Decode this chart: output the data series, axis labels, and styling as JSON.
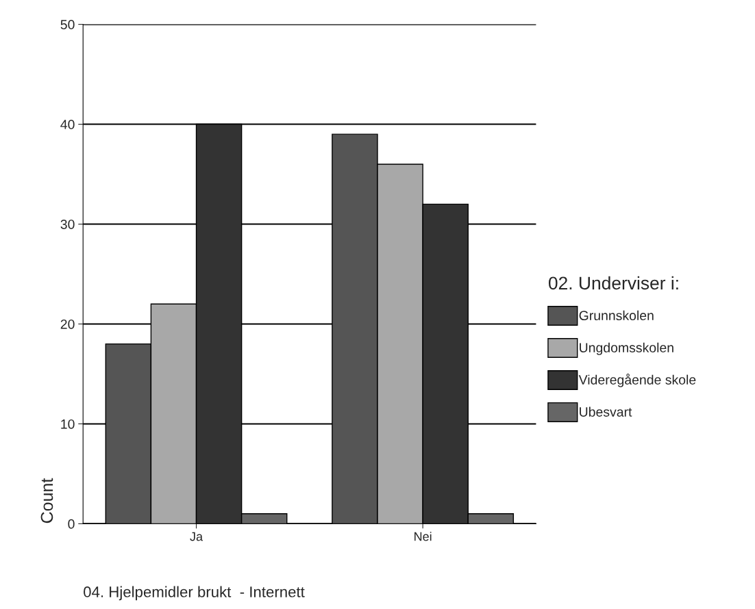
{
  "chart_data": {
    "type": "bar",
    "xlabel": "04. Hjelpemidler brukt  - Internett",
    "ylabel": "Count",
    "legend_title": "02. Underviser i:",
    "categories": [
      "Ja",
      "Nei"
    ],
    "series": [
      {
        "name": "Grunnskolen",
        "color": "#555555",
        "values": [
          18,
          39
        ]
      },
      {
        "name": "Ungdomsskolen",
        "color": "#a8a8a8",
        "values": [
          22,
          36
        ]
      },
      {
        "name": "Videregående skole",
        "color": "#333333",
        "values": [
          40,
          32
        ]
      },
      {
        "name": "Ubesvart",
        "color": "#666666",
        "values": [
          1,
          1
        ]
      }
    ],
    "ylim": [
      0,
      50
    ],
    "yticks": [
      0,
      10,
      20,
      30,
      40,
      50
    ],
    "grid": "y",
    "legend": "right"
  }
}
